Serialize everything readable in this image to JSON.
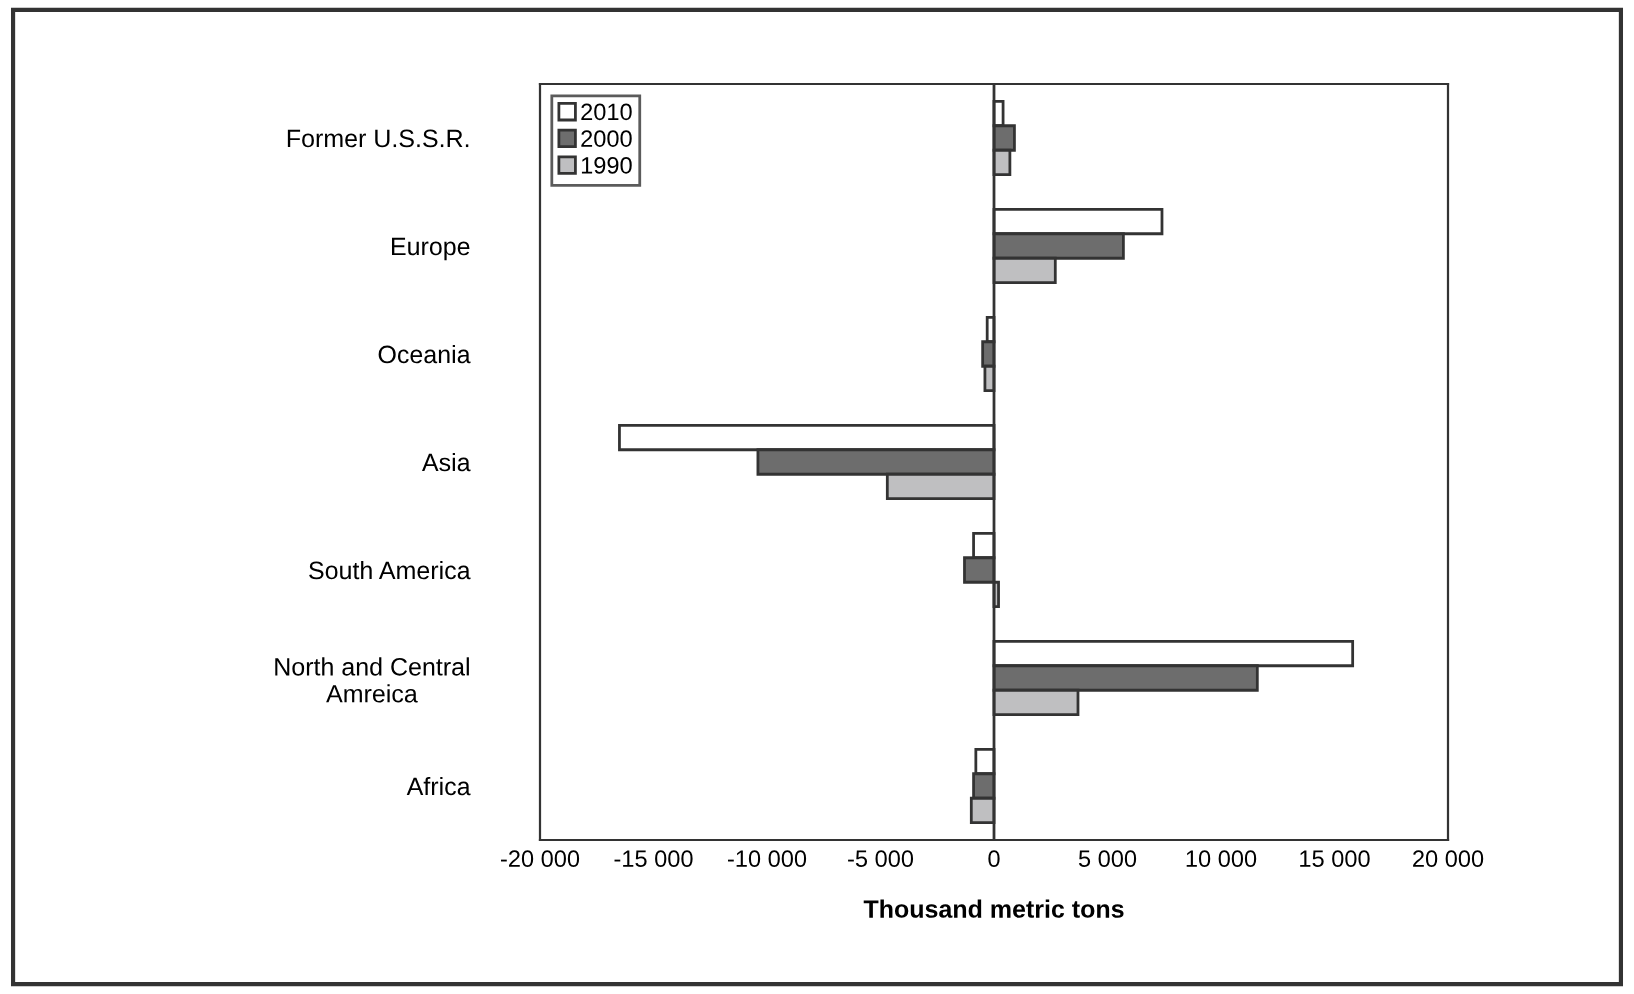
{
  "chart_data": {
    "type": "bar",
    "orientation": "horizontal",
    "xlabel": "Thousand metric tons",
    "categories": [
      "Former U.S.S.R.",
      "Europe",
      "Oceania",
      "Asia",
      "South America",
      "North and Central\nAmreica",
      "Africa"
    ],
    "series": [
      {
        "name": "2010",
        "color": "#ffffff",
        "values": [
          400,
          7400,
          -300,
          -16500,
          -900,
          15800,
          -800
        ]
      },
      {
        "name": "2000",
        "color": "#6d6d6d",
        "values": [
          900,
          5700,
          -500,
          -10400,
          -1300,
          11600,
          -900
        ]
      },
      {
        "name": "1990",
        "color": "#bfbfc1",
        "values": [
          700,
          2700,
          -400,
          -4700,
          200,
          3700,
          -1000
        ]
      }
    ],
    "xlim": [
      -20000,
      20000
    ],
    "xticks": [
      {
        "value": -20000,
        "label": "-20 000"
      },
      {
        "value": -15000,
        "label": "-15 000"
      },
      {
        "value": -10000,
        "label": "-10 000"
      },
      {
        "value": -5000,
        "label": "-5 000"
      },
      0,
      {
        "value": 5000,
        "label": "5 000"
      },
      {
        "value": 10000,
        "label": "10 000"
      },
      {
        "value": 15000,
        "label": "15 000"
      },
      {
        "value": 20000,
        "label": "20 000"
      }
    ],
    "ref_lines": [
      {
        "axis": "x",
        "value": 0
      }
    ],
    "legend": "top left"
  }
}
